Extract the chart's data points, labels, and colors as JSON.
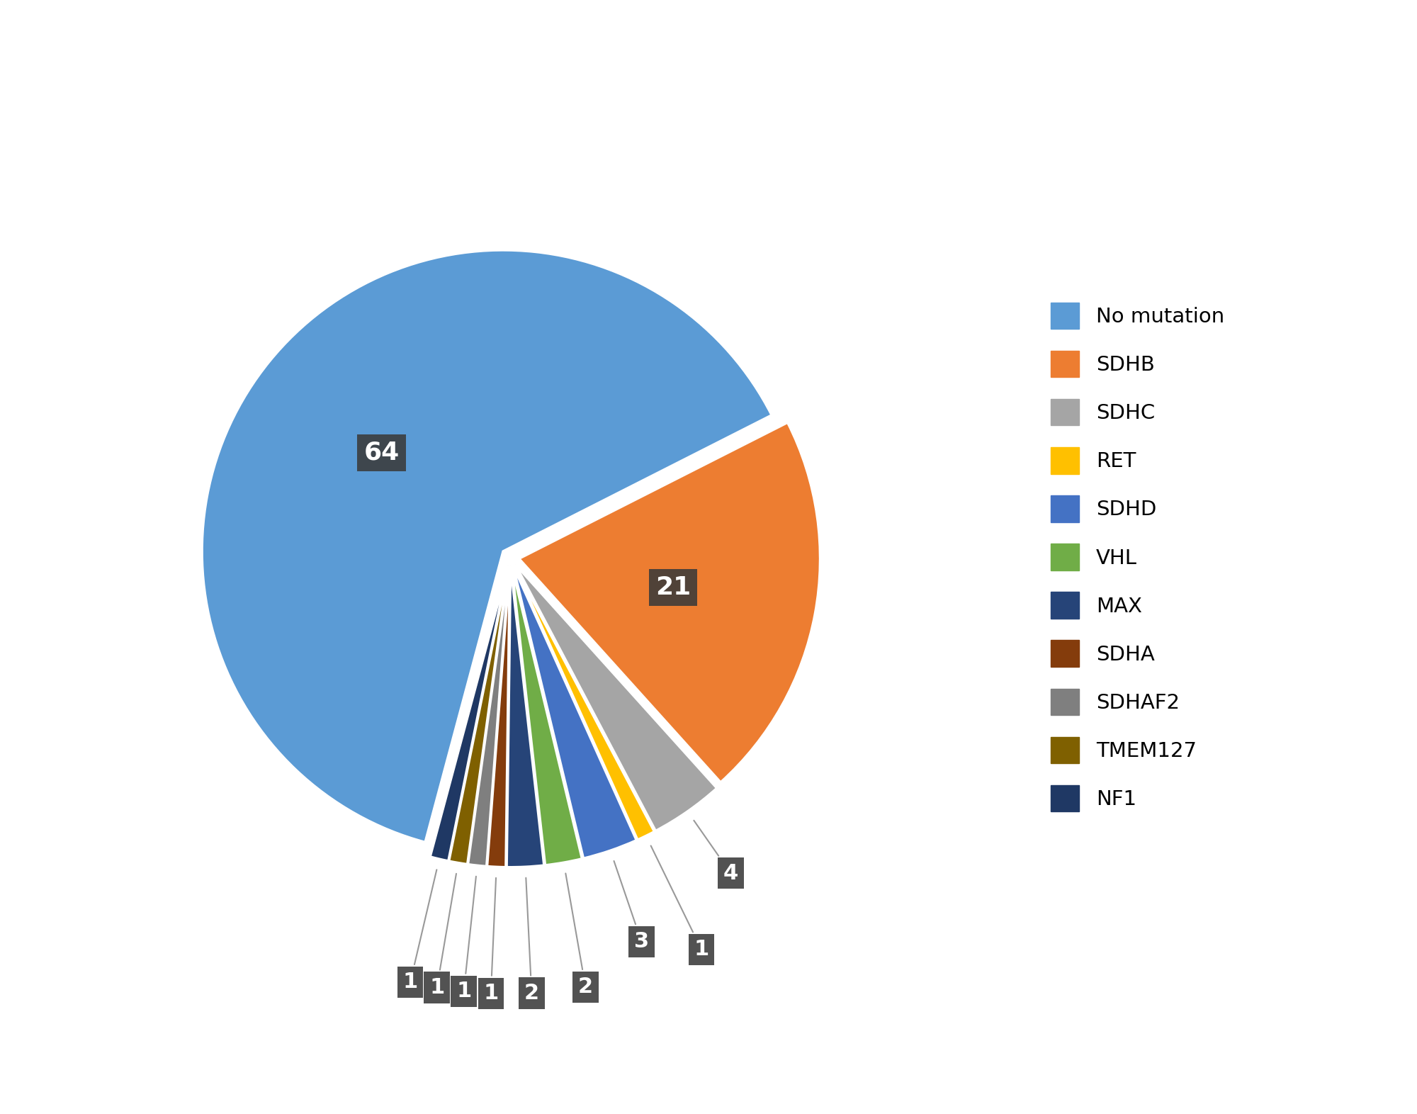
{
  "labels": [
    "No mutation",
    "SDHB",
    "SDHC",
    "RET",
    "SDHD",
    "VHL",
    "MAX",
    "SDHA",
    "SDHAF2",
    "TMEM127",
    "NF1"
  ],
  "values": [
    64,
    21,
    4,
    1,
    3,
    2,
    2,
    1,
    1,
    1,
    1
  ],
  "colors": [
    "#5B9BD5",
    "#ED7D31",
    "#A5A5A5",
    "#FFC000",
    "#4472C4",
    "#70AD47",
    "#264478",
    "#843C0C",
    "#7F7F7F",
    "#7F6000",
    "#1F3864"
  ],
  "explode": [
    0.03,
    0.03,
    0.03,
    0.03,
    0.03,
    0.03,
    0.03,
    0.03,
    0.03,
    0.03,
    0.03
  ],
  "annotation_box_color": "#3A3A3A",
  "annotation_text_color": "#FFFFFF",
  "background_color": "#FFFFFF",
  "legend_colors": [
    "#5B9BD5",
    "#ED7D31",
    "#A5A5A5",
    "#FFC000",
    "#4472C4",
    "#70AD47",
    "#264478",
    "#843C0C",
    "#7F7F7F",
    "#7F6000",
    "#1F3864"
  ]
}
